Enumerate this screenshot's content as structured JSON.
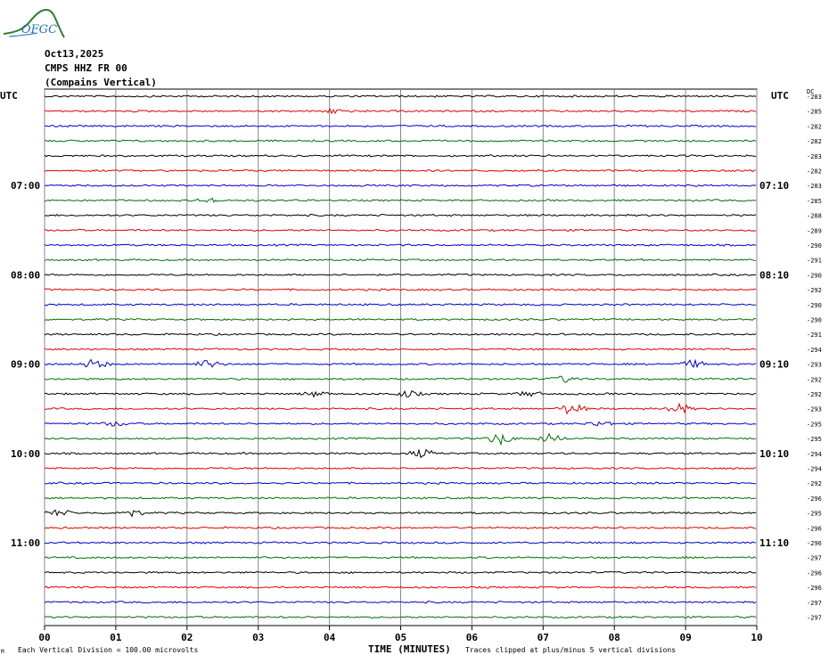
{
  "logo": {
    "text": "OFGC",
    "color": "#2e7d32",
    "text_color": "#1f6fb2"
  },
  "header": {
    "date": "Oct13,2025",
    "station": "CMPS HHZ FR 00",
    "location": "(Compains Vertical)"
  },
  "left_axis_title": "UTC",
  "right_axis_title": "UTC",
  "dc_label": "DC",
  "footer": {
    "x_axis_label": "TIME (MINUTES)",
    "scale_note": "Each Vertical Division = 100.00 microvolts",
    "clip_note": "Traces clipped at plus/minus 5 vertical divisions",
    "corner_mark": "Μ"
  },
  "chart_data": {
    "type": "line",
    "title": "",
    "xlabel": "TIME (MINUTES)",
    "ylabel": "UTC",
    "x_ticks": [
      "00",
      "01",
      "02",
      "03",
      "04",
      "05",
      "06",
      "07",
      "08",
      "09",
      "10"
    ],
    "xlim": [
      0,
      10
    ],
    "grid": true,
    "trace_colors": [
      "#000000",
      "#e00000",
      "#0000c8",
      "#007000"
    ],
    "trace_count": 36,
    "left_time_labels": [
      {
        "trace": 6,
        "label": "07:00"
      },
      {
        "trace": 12,
        "label": "08:00"
      },
      {
        "trace": 18,
        "label": "09:00"
      },
      {
        "trace": 24,
        "label": "10:00"
      },
      {
        "trace": 30,
        "label": "11:00"
      }
    ],
    "right_time_labels": [
      {
        "trace": 6,
        "label": "07:10"
      },
      {
        "trace": 12,
        "label": "08:10"
      },
      {
        "trace": 18,
        "label": "09:10"
      },
      {
        "trace": 24,
        "label": "10:10"
      },
      {
        "trace": 30,
        "label": "11:10"
      }
    ],
    "dc_offsets": [
      -283,
      -285,
      -282,
      -282,
      -283,
      -282,
      -283,
      -285,
      -288,
      -289,
      -290,
      -291,
      -290,
      -292,
      -290,
      -290,
      -291,
      -294,
      -293,
      -292,
      -292,
      -293,
      -295,
      -295,
      -294,
      -294,
      -292,
      -296,
      -295,
      -296,
      -296,
      -297,
      -296,
      -296,
      -297,
      -297
    ],
    "events": [
      {
        "trace": 18,
        "minute": 0.7,
        "amplitude": 2.5
      },
      {
        "trace": 18,
        "minute": 2.3,
        "amplitude": 2.0
      },
      {
        "trace": 18,
        "minute": 9.1,
        "amplitude": 1.8
      },
      {
        "trace": 19,
        "minute": 7.3,
        "amplitude": 1.6
      },
      {
        "trace": 20,
        "minute": 3.8,
        "amplitude": 1.3
      },
      {
        "trace": 20,
        "minute": 5.1,
        "amplitude": 1.6
      },
      {
        "trace": 20,
        "minute": 6.8,
        "amplitude": 1.3
      },
      {
        "trace": 21,
        "minute": 7.4,
        "amplitude": 3.0
      },
      {
        "trace": 21,
        "minute": 8.9,
        "amplitude": 2.5
      },
      {
        "trace": 22,
        "minute": 1.0,
        "amplitude": 1.2
      },
      {
        "trace": 22,
        "minute": 7.8,
        "amplitude": 1.3
      },
      {
        "trace": 23,
        "minute": 6.4,
        "amplitude": 3.0
      },
      {
        "trace": 23,
        "minute": 7.1,
        "amplitude": 2.2
      },
      {
        "trace": 24,
        "minute": 5.3,
        "amplitude": 2.0
      },
      {
        "trace": 28,
        "minute": 0.2,
        "amplitude": 1.5
      },
      {
        "trace": 28,
        "minute": 1.2,
        "amplitude": 1.8
      },
      {
        "trace": 1,
        "minute": 4.1,
        "amplitude": 1.3
      },
      {
        "trace": 7,
        "minute": 2.3,
        "amplitude": 1.1
      }
    ]
  }
}
